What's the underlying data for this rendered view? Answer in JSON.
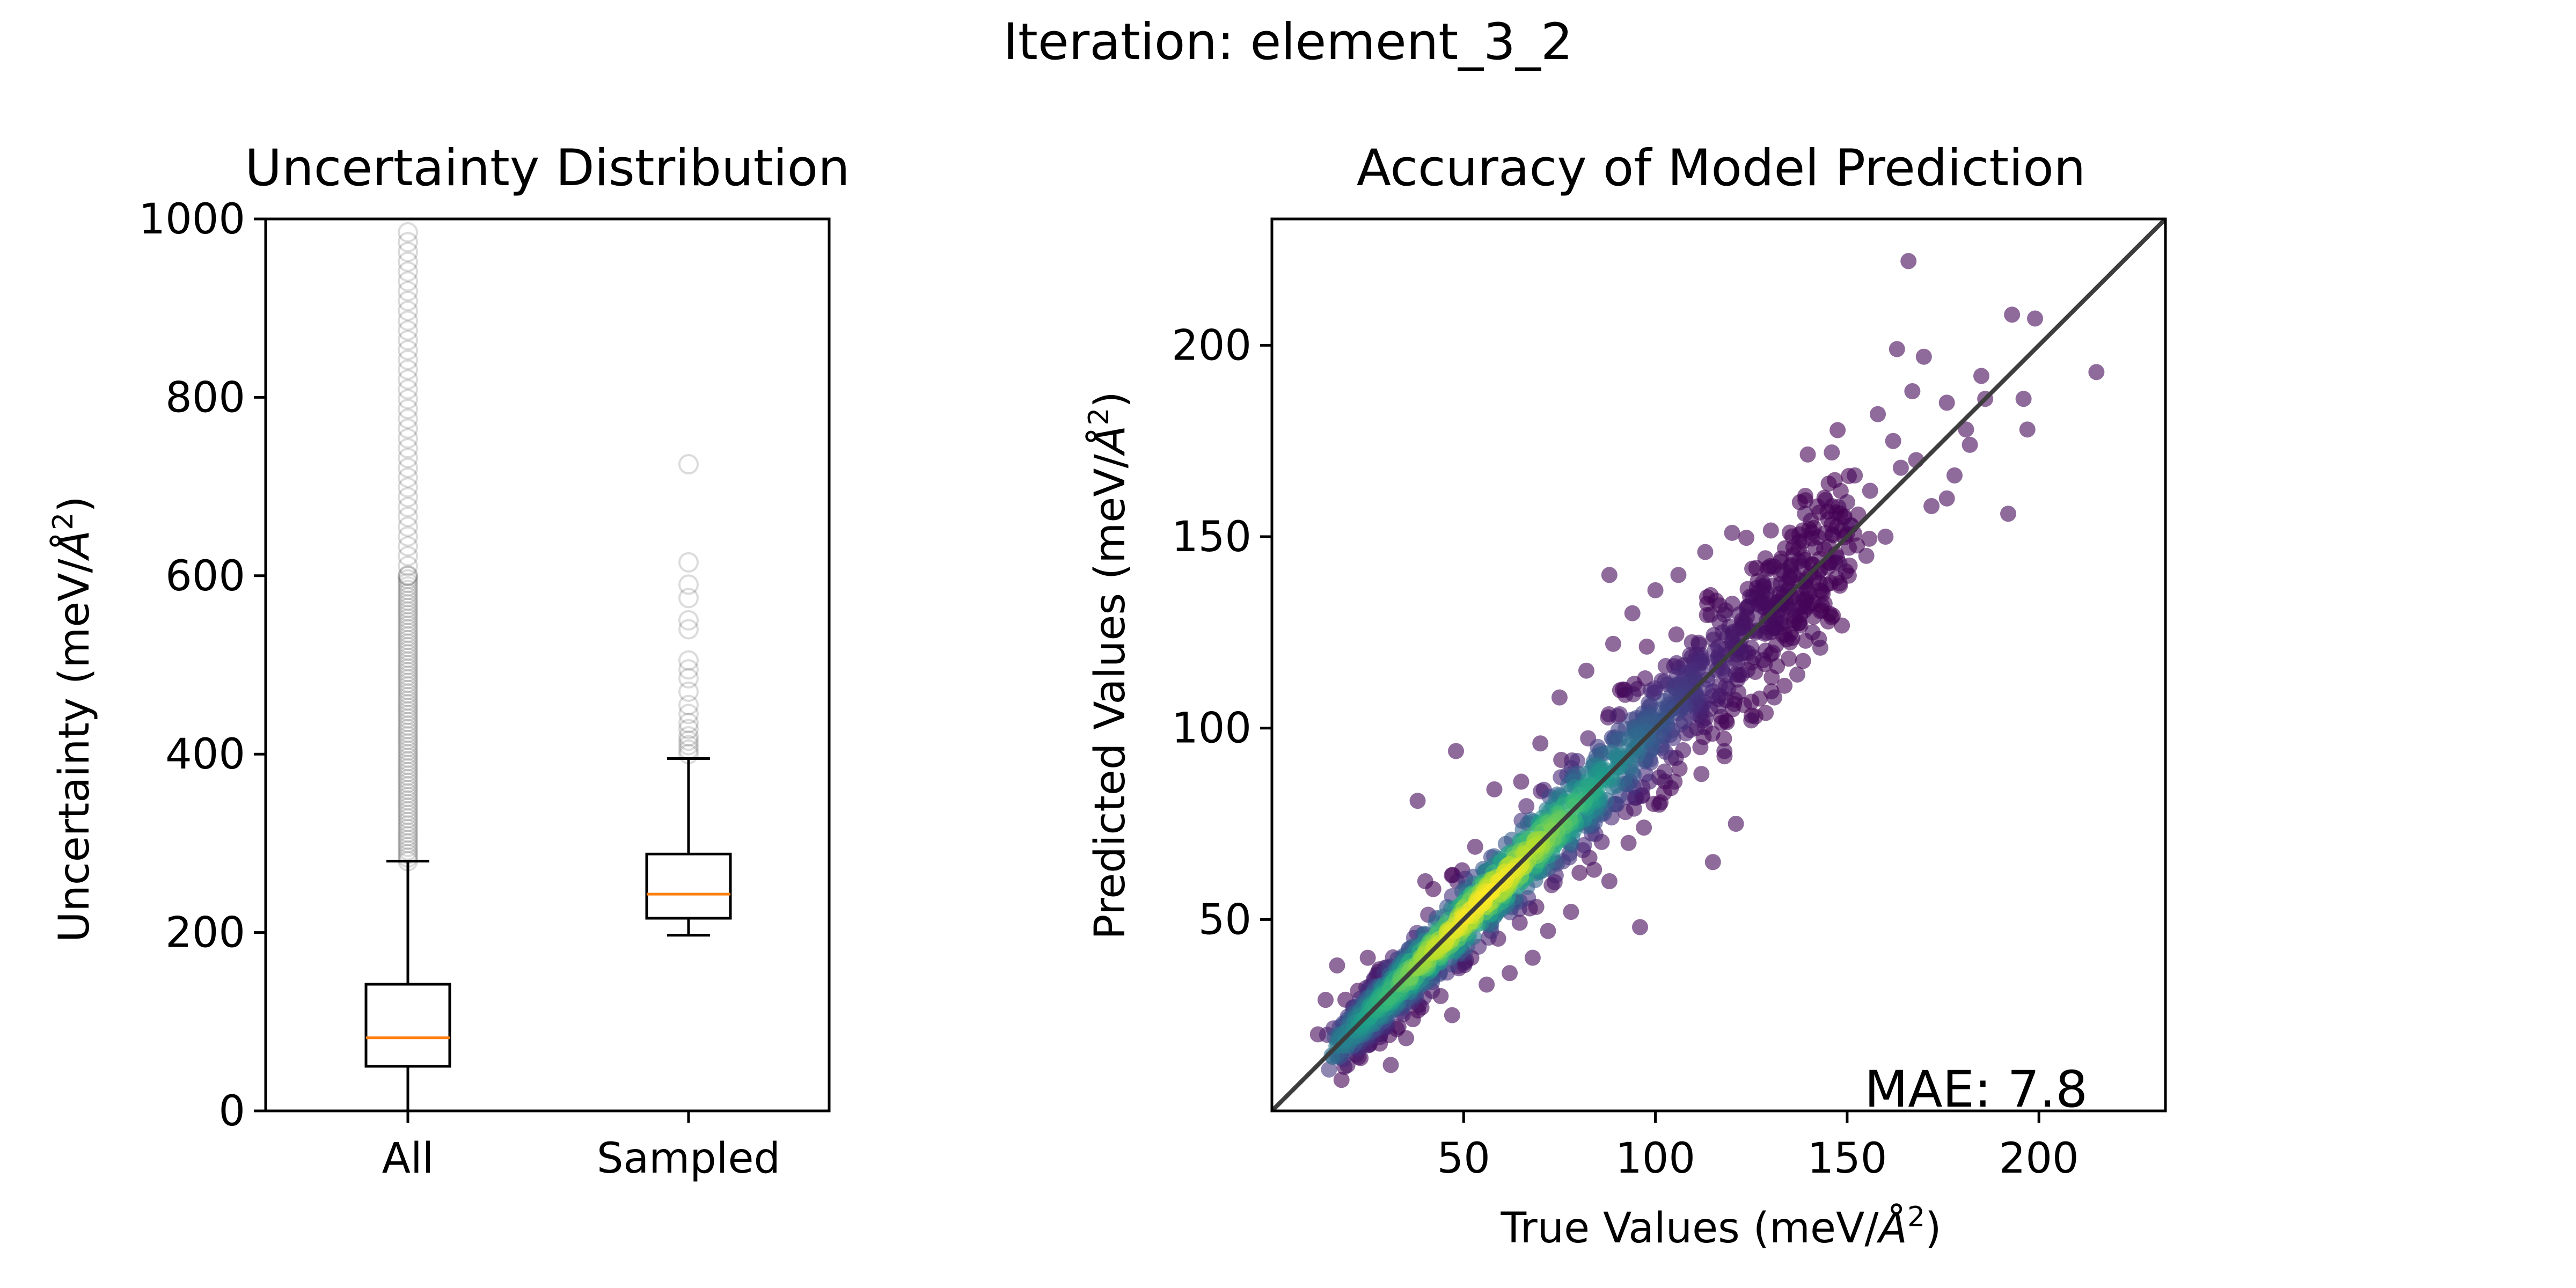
{
  "figure": {
    "suptitle": "Iteration: element_3_2"
  },
  "chart_data": [
    {
      "type": "box",
      "title": "Uncertainty Distribution",
      "xlabel": "",
      "ylabel_main": "Uncertainty (meV/",
      "ylabel_unit": "Å",
      "ylabel_exp": "2",
      "ylabel_tail": ")",
      "ylim": [
        0,
        1000
      ],
      "yticks": [
        0,
        200,
        400,
        600,
        800,
        1000
      ],
      "categories": [
        "All",
        "Sampled"
      ],
      "boxes": [
        {
          "name": "All",
          "whislo": 0,
          "q1": 50,
          "med": 82,
          "q3": 142,
          "whishi": 280,
          "fliers_range": [
            280,
            995
          ],
          "fliers_dense": true
        },
        {
          "name": "Sampled",
          "whislo": 197,
          "q1": 216,
          "med": 243,
          "q3": 288,
          "whishi": 395,
          "fliers": [
            400,
            405,
            410,
            415,
            420,
            428,
            435,
            445,
            455,
            470,
            485,
            495,
            505,
            540,
            550,
            575,
            590,
            615,
            725
          ]
        }
      ],
      "colors": {
        "box": "#000000",
        "median": "#ff7f0e",
        "flier": "#000000"
      },
      "grid": false
    },
    {
      "type": "scatter",
      "title": "Accuracy of Model Prediction",
      "xlabel_main": "True Values (meV/",
      "xlabel_unit": "Å",
      "xlabel_exp": "2",
      "xlabel_tail": ")",
      "ylabel_main": "Predicted Values (meV/",
      "ylabel_unit": "Å",
      "ylabel_exp": "2",
      "ylabel_tail": ")",
      "xlim": [
        0,
        233
      ],
      "ylim": [
        0,
        233
      ],
      "xticks": [
        50,
        100,
        150,
        200
      ],
      "yticks": [
        50,
        100,
        150,
        200
      ],
      "colormap": "viridis",
      "reference_line": "y = x",
      "annotation": "MAE: 7.8",
      "points": [
        [
          166,
          222
        ],
        [
          215,
          193
        ],
        [
          199,
          207
        ],
        [
          193,
          208
        ],
        [
          196,
          186
        ],
        [
          197,
          178
        ],
        [
          185,
          192
        ],
        [
          192,
          156
        ],
        [
          170,
          197
        ],
        [
          182,
          174
        ],
        [
          178,
          166
        ],
        [
          172,
          158
        ],
        [
          176,
          160
        ],
        [
          163,
          199
        ],
        [
          162,
          175
        ],
        [
          158,
          182
        ],
        [
          156,
          162
        ],
        [
          150,
          159
        ],
        [
          148,
          143
        ],
        [
          146,
          172
        ],
        [
          139,
          156
        ],
        [
          151,
          153
        ],
        [
          155,
          145
        ],
        [
          160,
          150
        ],
        [
          167,
          188
        ],
        [
          176,
          185
        ],
        [
          186,
          186
        ],
        [
          181,
          178
        ],
        [
          168,
          170
        ],
        [
          164,
          168
        ],
        [
          152,
          166
        ],
        [
          96,
          48
        ],
        [
          48,
          94
        ],
        [
          38,
          81
        ],
        [
          53,
          69
        ],
        [
          25,
          40
        ],
        [
          28,
          37
        ],
        [
          17,
          38
        ],
        [
          14,
          29
        ],
        [
          12,
          20
        ],
        [
          18,
          15
        ],
        [
          22,
          17
        ],
        [
          31,
          12
        ],
        [
          26,
          24
        ],
        [
          33,
          22
        ],
        [
          39,
          27
        ],
        [
          44,
          30
        ],
        [
          47,
          25
        ],
        [
          35,
          19
        ],
        [
          42,
          36
        ],
        [
          56,
          33
        ],
        [
          62,
          36
        ],
        [
          59,
          45
        ],
        [
          68,
          40
        ],
        [
          72,
          47
        ],
        [
          78,
          52
        ],
        [
          84,
          63
        ],
        [
          88,
          60
        ],
        [
          93,
          70
        ],
        [
          97,
          74
        ],
        [
          101,
          80
        ],
        [
          105,
          86
        ],
        [
          112,
          88
        ],
        [
          118,
          94
        ],
        [
          125,
          102
        ],
        [
          131,
          108
        ],
        [
          137,
          114
        ],
        [
          143,
          121
        ],
        [
          65,
          86
        ],
        [
          58,
          84
        ],
        [
          70,
          96
        ],
        [
          75,
          108
        ],
        [
          82,
          115
        ],
        [
          89,
          122
        ],
        [
          94,
          130
        ],
        [
          100,
          136
        ],
        [
          106,
          140
        ],
        [
          113,
          146
        ],
        [
          120,
          151
        ],
        [
          128,
          138
        ],
        [
          135,
          131
        ],
        [
          141,
          125
        ],
        [
          88,
          140
        ],
        [
          92,
          110
        ],
        [
          115,
          65
        ],
        [
          121,
          75
        ],
        [
          40,
          60
        ],
        [
          45,
          45
        ],
        [
          52,
          40
        ],
        [
          63,
          55
        ],
        [
          80,
          75
        ],
        [
          99,
          99
        ],
        [
          110,
          113
        ],
        [
          132,
          133
        ]
      ],
      "core_cloud": {
        "description": "dense cluster along y=x from about 20 to 150",
        "x_range": [
          20,
          150
        ]
      },
      "grid": false
    }
  ]
}
